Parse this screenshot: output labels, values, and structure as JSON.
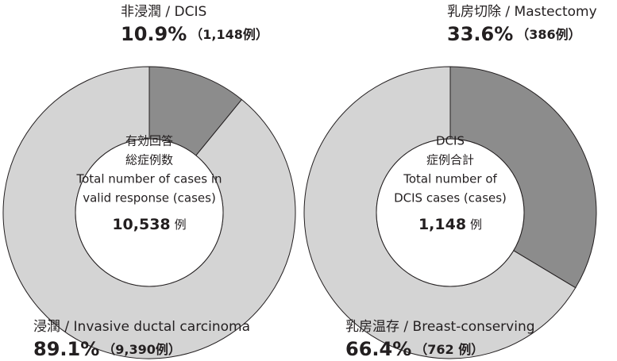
{
  "chart_data": [
    {
      "type": "donut",
      "center_text": [
        "有効回答",
        "総症例数",
        "Total number of cases in",
        "valid response (cases)"
      ],
      "center_total": "10,538",
      "center_unit": "例",
      "categories": [
        "非浸潤 / DCIS",
        "浸潤 / Invasive ductal carcinoma"
      ],
      "values": [
        10.9,
        89.1
      ],
      "value_labels": [
        "10.9%",
        "89.1%"
      ],
      "count_labels": [
        "（1,148例）",
        "（9,390例）"
      ],
      "colors": [
        "#8c8c8c",
        "#d4d4d4"
      ]
    },
    {
      "type": "donut",
      "center_text": [
        "DCIS",
        "症例合計",
        "Total number of",
        "DCIS cases (cases)"
      ],
      "center_total": "1,148",
      "center_unit": "例",
      "categories": [
        "乳房切除 / Mastectomy",
        "乳房温存 / Breast-conserving"
      ],
      "values": [
        33.6,
        66.4
      ],
      "value_labels": [
        "33.6%",
        "66.4%"
      ],
      "count_labels": [
        "（386例）",
        "（762 例）"
      ],
      "colors": [
        "#8c8c8c",
        "#d4d4d4"
      ]
    }
  ]
}
